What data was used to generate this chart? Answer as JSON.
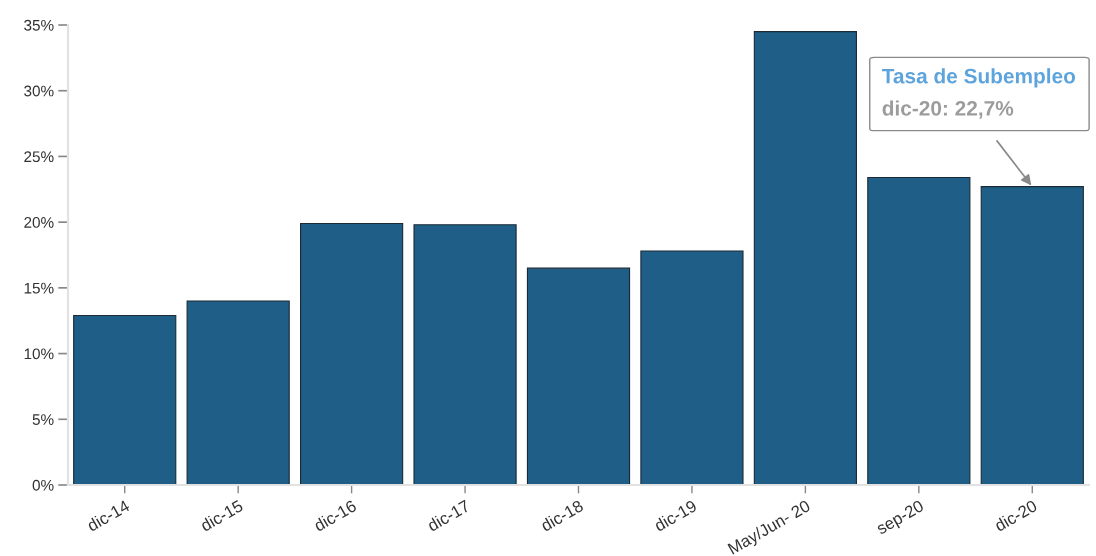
{
  "chart_data": {
    "type": "bar",
    "categories": [
      "dic-14",
      "dic-15",
      "dic-16",
      "dic-17",
      "dic-18",
      "dic-19",
      "May/Jun- 20",
      "sep-20",
      "dic-20"
    ],
    "values": [
      12.9,
      14.0,
      19.9,
      19.8,
      16.5,
      17.8,
      34.5,
      23.4,
      22.7
    ],
    "color": "#1f5f87",
    "ylim": [
      0,
      35
    ],
    "yticks": [
      {
        "value": 0,
        "label": "0%"
      },
      {
        "value": 5,
        "label": "5%"
      },
      {
        "value": 10,
        "label": "10%"
      },
      {
        "value": 15,
        "label": "15%"
      },
      {
        "value": 20,
        "label": "20%"
      },
      {
        "value": 25,
        "label": "25%"
      },
      {
        "value": 30,
        "label": "30%"
      },
      {
        "value": 35,
        "label": "35%"
      }
    ],
    "annotations": [
      "Tasa de Subempleo",
      {
        "text": "dic-20: 22,7%",
        "x": "dic-20",
        "y": 22.7
      }
    ]
  }
}
